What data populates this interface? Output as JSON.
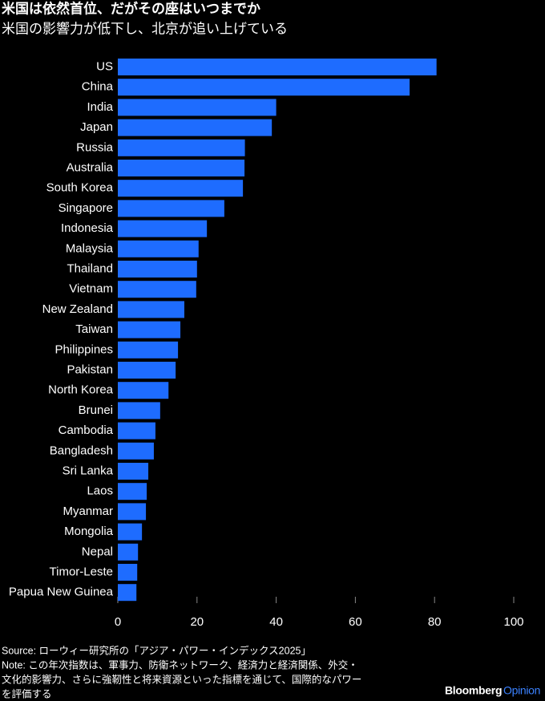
{
  "chart_data": {
    "type": "barh",
    "title": "米国は依然首位、だがその座はいつまでか",
    "subtitle": "米国の影響力が低下し、北京が追い上げている",
    "categories": [
      "US",
      "China",
      "India",
      "Japan",
      "Russia",
      "Australia",
      "South Korea",
      "Singapore",
      "Indonesia",
      "Malaysia",
      "Thailand",
      "Vietnam",
      "New Zealand",
      "Taiwan",
      "Philippines",
      "Pakistan",
      "North Korea",
      "Brunei",
      "Cambodia",
      "Bangladesh",
      "Sri Lanka",
      "Laos",
      "Myanmar",
      "Mongolia",
      "Nepal",
      "Timor-Leste",
      "Papua New Guinea"
    ],
    "values": [
      80.5,
      73.7,
      40.0,
      38.9,
      32.1,
      32.0,
      31.6,
      26.9,
      22.5,
      20.4,
      20.0,
      19.8,
      16.8,
      15.8,
      15.2,
      14.6,
      12.8,
      10.7,
      9.5,
      9.1,
      7.7,
      7.3,
      7.1,
      6.1,
      5.1,
      4.9,
      4.7
    ],
    "color": "#1e6cff",
    "xlim": [
      0,
      100
    ],
    "xticks": [
      0,
      20,
      40,
      60,
      80,
      100
    ],
    "source": "Source: ローウィー研究所の「アジア・パワー・インデックス2025」",
    "note": [
      "Note: この年次指数は、軍事力、防衛ネットワーク、経済力と経済関係、外交・",
      "文化的影響力、さらに強靭性と将来資源といった指標を通じて、国際的なパワー",
      "を評価する"
    ],
    "logo": [
      "Bloomberg",
      "Opinion"
    ]
  }
}
